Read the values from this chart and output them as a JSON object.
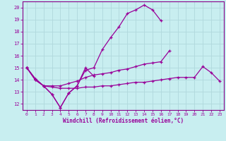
{
  "xlabel": "Windchill (Refroidissement éolien,°C)",
  "bg_color": "#c8eef0",
  "grid_color": "#b0d8dc",
  "line_color": "#990099",
  "spine_color": "#880088",
  "xlim": [
    -0.5,
    23.5
  ],
  "ylim": [
    11.5,
    20.5
  ],
  "xticks": [
    0,
    1,
    2,
    3,
    4,
    5,
    6,
    7,
    8,
    9,
    10,
    11,
    12,
    13,
    14,
    15,
    16,
    17,
    18,
    19,
    20,
    21,
    22,
    23
  ],
  "yticks": [
    12,
    13,
    14,
    15,
    16,
    17,
    18,
    19,
    20
  ],
  "lines": [
    {
      "x": [
        0,
        1,
        2,
        3,
        4,
        5,
        6,
        7,
        8
      ],
      "y": [
        15.0,
        14.1,
        13.5,
        12.8,
        11.7,
        12.9,
        13.5,
        15.0,
        14.3
      ]
    },
    {
      "x": [
        0,
        1,
        2,
        3,
        4,
        5,
        6,
        7,
        8,
        9,
        10,
        11,
        12,
        13,
        14,
        15,
        16
      ],
      "y": [
        15.0,
        14.1,
        13.5,
        12.8,
        11.7,
        12.9,
        13.5,
        14.8,
        15.0,
        16.5,
        17.5,
        18.4,
        19.5,
        19.8,
        20.2,
        19.8,
        18.9
      ]
    },
    {
      "x": [
        0,
        1,
        2,
        3,
        4,
        5,
        6,
        7,
        8,
        9,
        10,
        11,
        12,
        13,
        14,
        15,
        16,
        17
      ],
      "y": [
        15.0,
        14.0,
        13.5,
        13.5,
        13.5,
        13.7,
        13.9,
        14.2,
        14.4,
        14.5,
        14.6,
        14.8,
        14.9,
        15.1,
        15.3,
        15.4,
        15.5,
        16.4
      ]
    },
    {
      "x": [
        0,
        1,
        2,
        3,
        4,
        5,
        6,
        7,
        8,
        9,
        10,
        11,
        12,
        13,
        14,
        15,
        16,
        17,
        18,
        19,
        20,
        21,
        22,
        23
      ],
      "y": [
        15.0,
        14.0,
        13.5,
        13.4,
        13.3,
        13.3,
        13.3,
        13.4,
        13.4,
        13.5,
        13.5,
        13.6,
        13.7,
        13.8,
        13.8,
        13.9,
        14.0,
        14.1,
        14.2,
        14.2,
        14.2,
        15.1,
        14.6,
        13.9
      ]
    }
  ]
}
